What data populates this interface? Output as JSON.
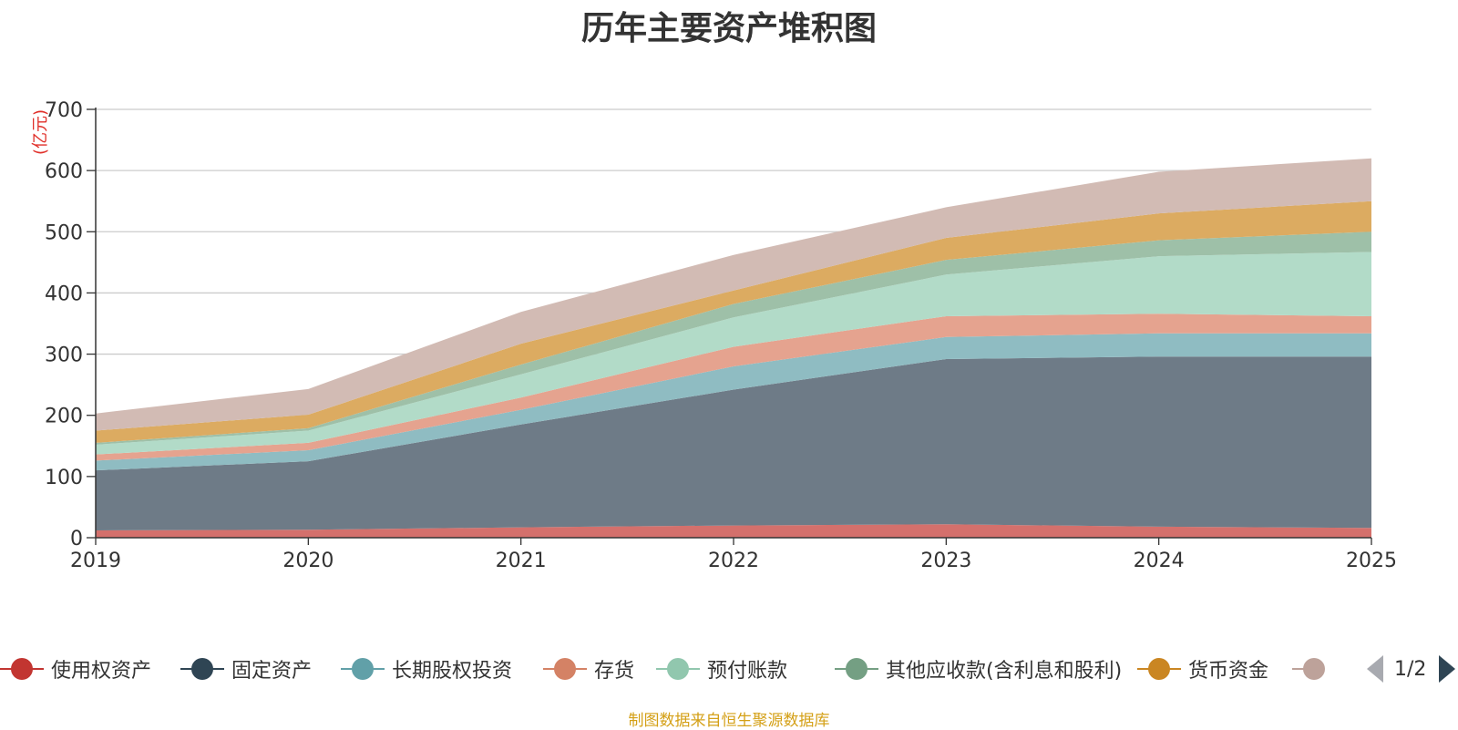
{
  "chart_data": {
    "type": "area",
    "stacked": true,
    "title": "历年主要资产堆积图",
    "unit_label": "(亿元)",
    "categories": [
      "2019",
      "2020",
      "2021",
      "2022",
      "2023",
      "2024",
      "2025"
    ],
    "ylim": [
      0,
      700
    ],
    "yticks": [
      0,
      100,
      200,
      300,
      400,
      500,
      600,
      700
    ],
    "grid": true,
    "series": [
      {
        "name": "使用权资产",
        "color": "#c23531",
        "fill": "#d4706c",
        "values": [
          12,
          13,
          17,
          20,
          22,
          18,
          16
        ]
      },
      {
        "name": "固定资产",
        "color": "#2f4554",
        "fill": "#6e7b87",
        "values": [
          98,
          112,
          168,
          222,
          270,
          278,
          280
        ]
      },
      {
        "name": "长期股权投资",
        "color": "#61a0a8",
        "fill": "#8fbcc2",
        "values": [
          16,
          18,
          24,
          38,
          36,
          38,
          38
        ]
      },
      {
        "name": "存货",
        "color": "#d48265",
        "fill": "#e5a38f",
        "values": [
          10,
          12,
          20,
          32,
          34,
          32,
          28
        ]
      },
      {
        "name": "预付账款",
        "color": "#91c7ae",
        "fill": "#b2dbc8",
        "values": [
          16,
          20,
          38,
          48,
          68,
          94,
          105
        ]
      },
      {
        "name": "其他应收款(含利息和股利)",
        "color": "#749f83",
        "fill": "#9ec0a8",
        "values": [
          3,
          4,
          16,
          22,
          24,
          26,
          33
        ]
      },
      {
        "name": "货币资金",
        "color": "#ca8622",
        "fill": "#dcab61",
        "values": [
          20,
          22,
          34,
          22,
          36,
          44,
          50
        ]
      },
      {
        "name": "",
        "color": "#bda29a",
        "fill": "#d2bbb4",
        "values": [
          28,
          42,
          52,
          58,
          50,
          68,
          70
        ]
      }
    ]
  },
  "legend": {
    "items": [
      {
        "label": "使用权资产",
        "color": "#c23531"
      },
      {
        "label": "固定资产",
        "color": "#2f4554"
      },
      {
        "label": "长期股权投资",
        "color": "#61a0a8"
      },
      {
        "label": "存货",
        "color": "#d48265"
      },
      {
        "label": "预付账款",
        "color": "#91c7ae"
      },
      {
        "label": "其他应收款(含利息和股利)",
        "color": "#749f83"
      },
      {
        "label": "货币资金",
        "color": "#ca8622"
      },
      {
        "label": "",
        "color": "#bda29a"
      }
    ],
    "page": "1/2"
  },
  "source_text": "制图数据来自恒生聚源数据库"
}
